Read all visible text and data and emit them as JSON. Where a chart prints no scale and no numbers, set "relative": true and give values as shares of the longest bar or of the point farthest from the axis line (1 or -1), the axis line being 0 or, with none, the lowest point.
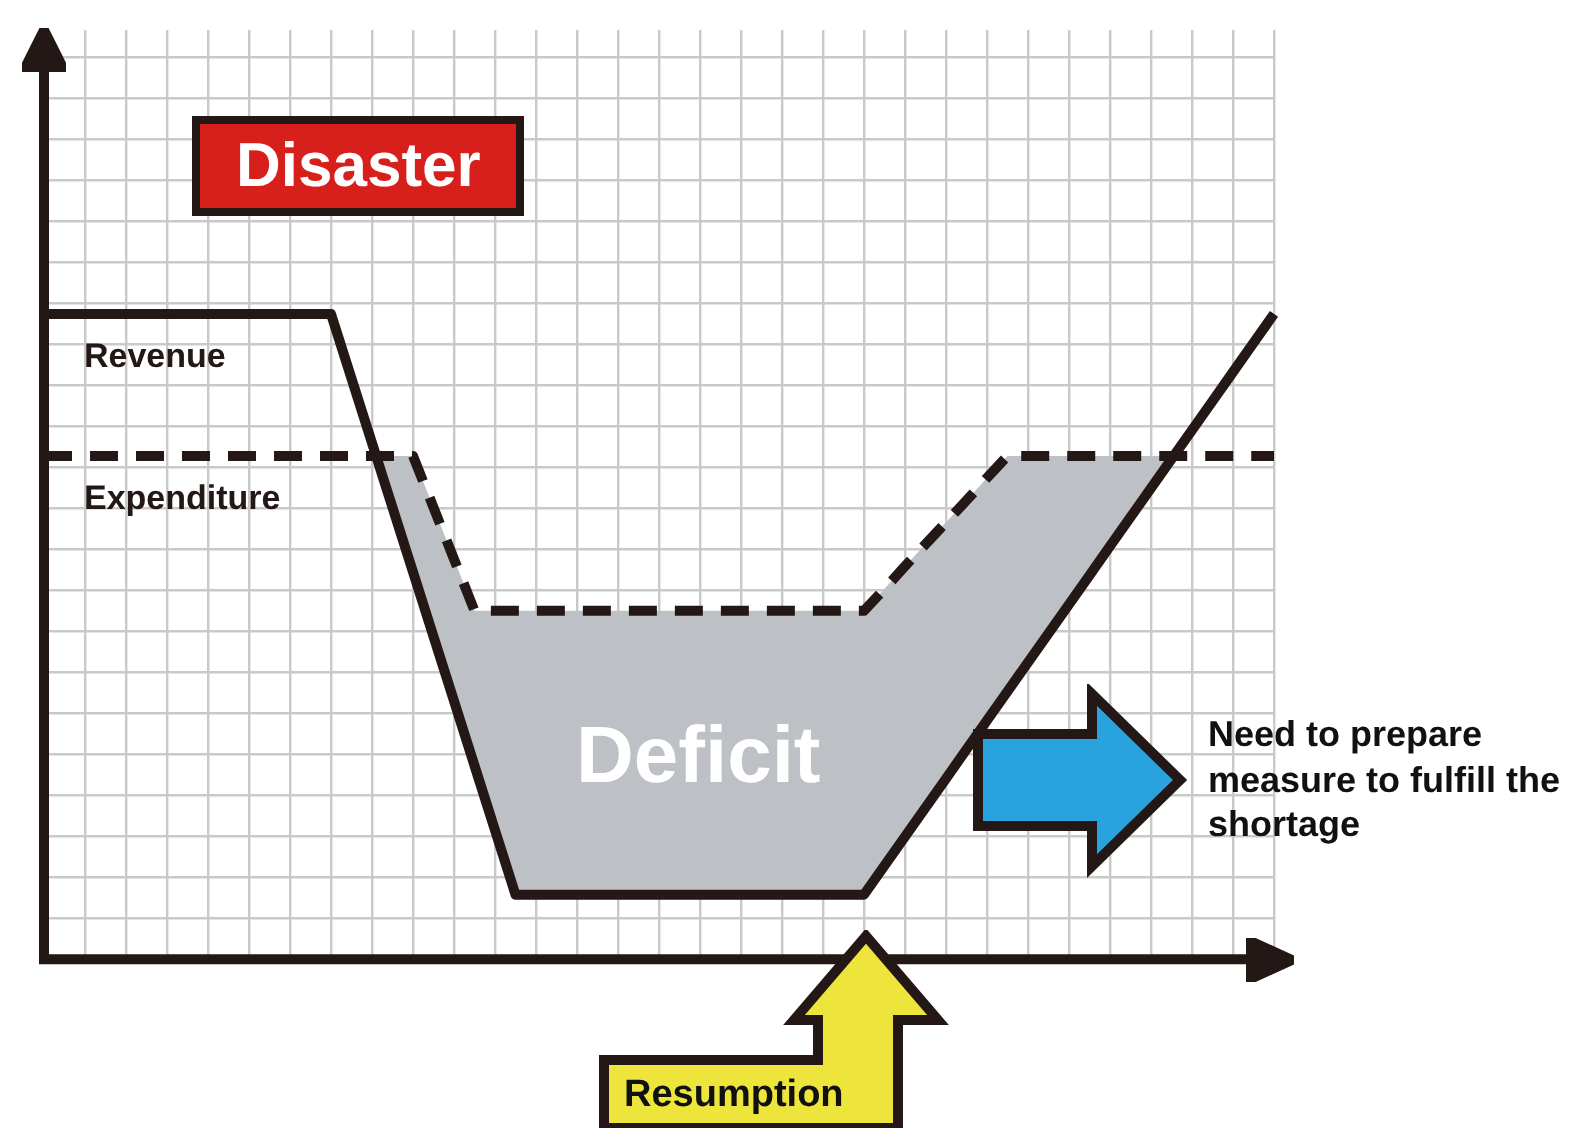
{
  "chart_data": {
    "type": "line",
    "relative": true,
    "grid": true,
    "marker": "none",
    "legend": false,
    "categories": [
      null,
      null,
      null,
      null,
      null,
      null,
      null,
      null,
      null,
      null,
      null,
      null,
      null,
      null,
      null,
      null,
      null,
      null,
      null,
      null,
      null,
      null,
      null,
      null,
      null,
      null,
      null,
      null,
      null,
      null,
      null,
      null,
      null,
      null,
      null,
      null,
      null,
      null,
      null,
      null,
      null,
      null,
      null,
      null,
      null,
      null,
      null,
      null,
      null,
      null,
      null,
      null,
      null,
      null,
      null,
      null,
      null,
      null,
      null,
      null,
      null
    ],
    "series": [
      {
        "name": "Revenue",
        "color": "#231815",
        "line_style": "solid",
        "values": [
          1,
          1,
          1,
          1,
          1,
          1,
          1,
          1,
          1,
          1,
          1,
          1,
          1,
          1,
          1,
          0.9,
          0.8,
          0.7,
          0.6,
          0.5,
          0.4,
          0.3,
          0.2,
          0.1,
          0.1,
          0.1,
          0.1,
          0.1,
          0.1,
          0.1,
          0.1,
          0.1,
          0.1,
          0.1,
          0.1,
          0.1,
          0.1,
          0.1,
          0.1,
          0.1,
          0.1,
          0.145,
          0.19,
          0.235,
          0.28,
          0.325,
          0.37,
          0.415,
          0.46,
          0.505,
          0.55,
          0.595,
          0.64,
          0.685,
          0.73,
          0.775,
          0.82,
          0.865,
          0.91,
          0.955,
          1
        ]
      },
      {
        "name": "Expenditure",
        "color": "#231815",
        "line_style": "dashed",
        "values": [
          0.78,
          0.78,
          0.78,
          0.78,
          0.78,
          0.78,
          0.78,
          0.78,
          0.78,
          0.78,
          0.78,
          0.78,
          0.78,
          0.78,
          0.78,
          0.78,
          0.78,
          0.78,
          0.78,
          0.7,
          0.62,
          0.54,
          0.54,
          0.54,
          0.54,
          0.54,
          0.54,
          0.54,
          0.54,
          0.54,
          0.54,
          0.54,
          0.54,
          0.54,
          0.54,
          0.54,
          0.54,
          0.54,
          0.54,
          0.54,
          0.54,
          0.574,
          0.609,
          0.643,
          0.677,
          0.711,
          0.746,
          0.78,
          0.78,
          0.78,
          0.78,
          0.78,
          0.78,
          0.78,
          0.78,
          0.78,
          0.78,
          0.78,
          0.78,
          0.78,
          0.78
        ]
      }
    ],
    "annotations": [
      "Disaster",
      "Deficit",
      "Need to prepare measure to fulfill the shortage",
      "Resumption"
    ]
  }
}
